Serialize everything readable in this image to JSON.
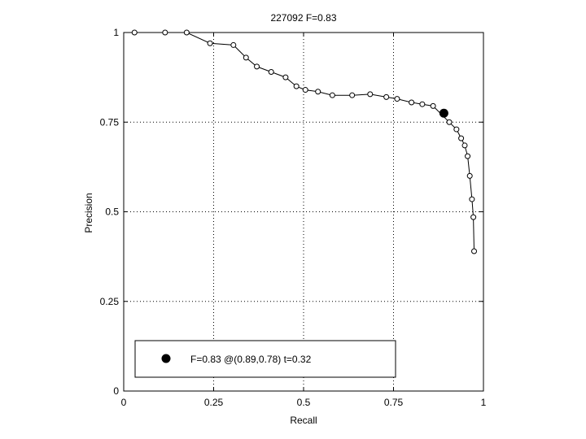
{
  "chart_data": {
    "type": "line",
    "title": "227092 F=0.83",
    "xlabel": "Recall",
    "ylabel": "Precision",
    "xlim": [
      0,
      1
    ],
    "ylim": [
      0,
      1
    ],
    "grid": true,
    "legend_position": "bottom-left",
    "x_ticks": [
      "0",
      "0.25",
      "0.5",
      "0.75",
      "1"
    ],
    "y_ticks": [
      "0",
      "0.25",
      "0.5",
      "0.75",
      "1"
    ],
    "series": [
      {
        "x": [
          0.03,
          0.115,
          0.175,
          0.24,
          0.305,
          0.34,
          0.37,
          0.41,
          0.45,
          0.48,
          0.505,
          0.54,
          0.58,
          0.635,
          0.685,
          0.73,
          0.76,
          0.8,
          0.83,
          0.86,
          0.905,
          0.925,
          0.938,
          0.948,
          0.956,
          0.962,
          0.968,
          0.972,
          0.974
        ],
        "y": [
          1.0,
          1.0,
          1.0,
          0.97,
          0.965,
          0.93,
          0.905,
          0.89,
          0.875,
          0.85,
          0.84,
          0.835,
          0.825,
          0.825,
          0.828,
          0.82,
          0.815,
          0.805,
          0.8,
          0.795,
          0.75,
          0.73,
          0.705,
          0.685,
          0.655,
          0.6,
          0.535,
          0.485,
          0.39
        ]
      }
    ],
    "highlight_point": {
      "x": 0.89,
      "y": 0.775
    },
    "legend": {
      "label": "F=0.83 @(0.89,0.78) t=0.32"
    }
  }
}
